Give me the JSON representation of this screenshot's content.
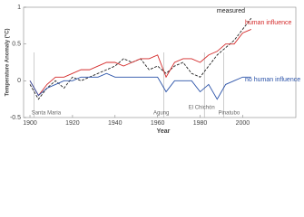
{
  "chart_data": {
    "type": "line",
    "xlabel": "Year",
    "ylabel": "Temperature Anomaly (°C)",
    "x": [
      1900,
      1904,
      1908,
      1912,
      1916,
      1920,
      1924,
      1928,
      1932,
      1936,
      1940,
      1944,
      1948,
      1952,
      1956,
      1960,
      1964,
      1968,
      1972,
      1976,
      1980,
      1984,
      1988,
      1992,
      1996,
      2000,
      2004
    ],
    "series": [
      {
        "name": "measured",
        "color": "#222222",
        "dashed": true,
        "values": [
          -0.05,
          -0.25,
          -0.1,
          0.0,
          -0.1,
          0.05,
          0.0,
          0.05,
          0.1,
          0.15,
          0.2,
          0.3,
          0.25,
          0.3,
          0.15,
          0.2,
          0.1,
          0.2,
          0.25,
          0.1,
          0.05,
          0.2,
          0.35,
          0.45,
          0.55,
          0.7,
          0.85
        ]
      },
      {
        "name": "human influence",
        "color": "#d42a2a",
        "dashed": false,
        "values": [
          0,
          -0.2,
          -0.05,
          0.05,
          0.05,
          0.1,
          0.15,
          0.15,
          0.2,
          0.25,
          0.25,
          0.2,
          0.25,
          0.3,
          0.3,
          0.35,
          0.05,
          0.25,
          0.3,
          0.3,
          0.25,
          0.35,
          0.4,
          0.5,
          0.5,
          0.65,
          0.7
        ]
      },
      {
        "name": "no human influence",
        "color": "#2a52a8",
        "dashed": false,
        "values": [
          0,
          -0.2,
          -0.1,
          -0.05,
          0.0,
          0.0,
          0.05,
          0.05,
          0.05,
          0.1,
          0.05,
          0.05,
          0.05,
          0.05,
          0.05,
          0.05,
          -0.15,
          0.0,
          0.0,
          0.0,
          -0.15,
          -0.05,
          -0.25,
          -0.05,
          0.0,
          0.05,
          0.05
        ]
      }
    ],
    "annotations": [
      {
        "text": "Santa Maria",
        "x": 1902
      },
      {
        "text": "Agung",
        "x": 1963
      },
      {
        "text": "El Chichón",
        "x": 1982
      },
      {
        "text": "Pinatubo",
        "x": 1991
      }
    ],
    "xlim": [
      1897,
      2025
    ],
    "xticks": [
      1900,
      1920,
      1940,
      1960,
      1980,
      2000
    ],
    "ylim": [
      -0.5,
      1
    ],
    "yticks": [
      -0.5,
      0,
      0.5,
      1
    ]
  }
}
